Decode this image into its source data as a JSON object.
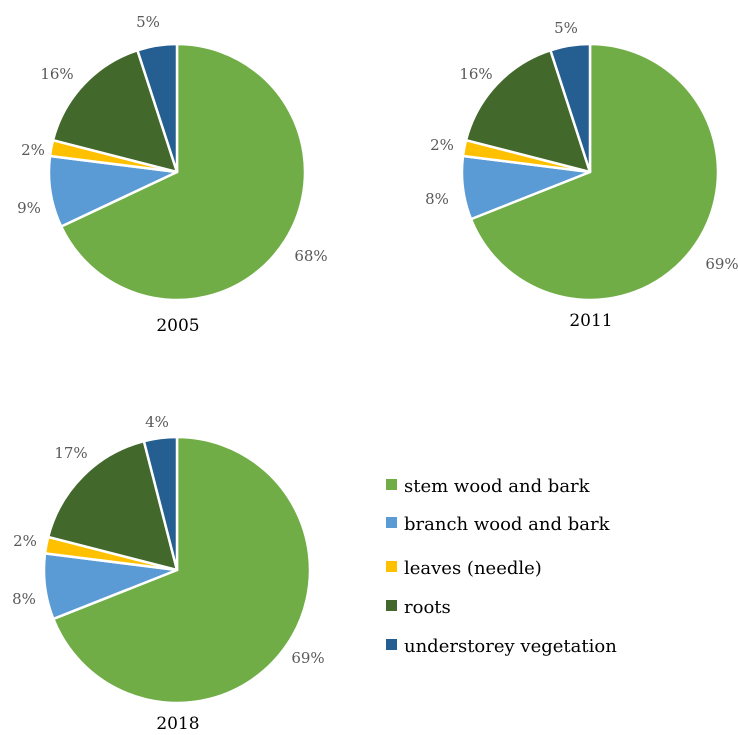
{
  "chart_data": [
    {
      "type": "pie",
      "title": "2005",
      "categories": [
        "stem wood and bark",
        "branch wood and bark",
        "leaves (needle)",
        "roots",
        "understorey vegetation"
      ],
      "values": [
        68,
        9,
        2,
        16,
        5
      ],
      "value_labels": [
        "68%",
        "9%",
        "2%",
        "16%",
        "5%"
      ]
    },
    {
      "type": "pie",
      "title": "2011",
      "categories": [
        "stem wood and bark",
        "branch wood and bark",
        "leaves (needle)",
        "roots",
        "understorey vegetation"
      ],
      "values": [
        69,
        8,
        2,
        16,
        5
      ],
      "value_labels": [
        "69%",
        "8%",
        "2%",
        "16%",
        "5%"
      ]
    },
    {
      "type": "pie",
      "title": "2018",
      "categories": [
        "stem wood and bark",
        "branch wood and bark",
        "leaves (needle)",
        "roots",
        "understorey vegetation"
      ],
      "values": [
        69,
        8,
        2,
        17,
        4
      ],
      "value_labels": [
        "69%",
        "8%",
        "2%",
        "17%",
        "4%"
      ]
    }
  ],
  "legend": {
    "placement": "bottom-right",
    "entries": [
      {
        "label": "stem wood and bark",
        "color": "#70ad47"
      },
      {
        "label": "branch wood and bark",
        "color": "#5b9bd5"
      },
      {
        "label": "leaves (needle)",
        "color": "#ffc000"
      },
      {
        "label": "roots",
        "color": "#43682b"
      },
      {
        "label": "understorey vegetation",
        "color": "#255e91"
      }
    ]
  },
  "colors": {
    "slice_border": "#ffffff",
    "label_text": "#595959"
  }
}
